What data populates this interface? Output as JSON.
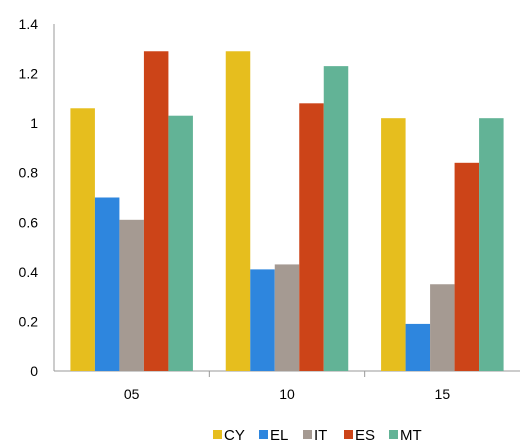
{
  "chart_data": {
    "type": "bar",
    "categories": [
      "05",
      "10",
      "15"
    ],
    "series": [
      {
        "name": "CY",
        "color": "#E6BE1E",
        "values": [
          1.06,
          1.29,
          1.02
        ]
      },
      {
        "name": "EL",
        "color": "#2E86DE",
        "values": [
          0.7,
          0.41,
          0.19
        ]
      },
      {
        "name": "IT",
        "color": "#A59A92",
        "values": [
          0.61,
          0.43,
          0.35
        ]
      },
      {
        "name": "ES",
        "color": "#CC4418",
        "values": [
          1.29,
          1.08,
          0.84
        ]
      },
      {
        "name": "MT",
        "color": "#62B396",
        "values": [
          1.03,
          1.23,
          1.02
        ]
      }
    ],
    "title": "",
    "xlabel": "",
    "ylabel": "",
    "ylim": [
      0,
      1.4
    ],
    "yticks": [
      0,
      0.2,
      0.4,
      0.6,
      0.8,
      1,
      1.2,
      1.4
    ],
    "ytick_labels": [
      "0",
      "0.2",
      "0.4",
      "0.6",
      "0.8",
      "1",
      "1.2",
      "1.4"
    ],
    "grid": false,
    "legend_position": "bottom"
  }
}
